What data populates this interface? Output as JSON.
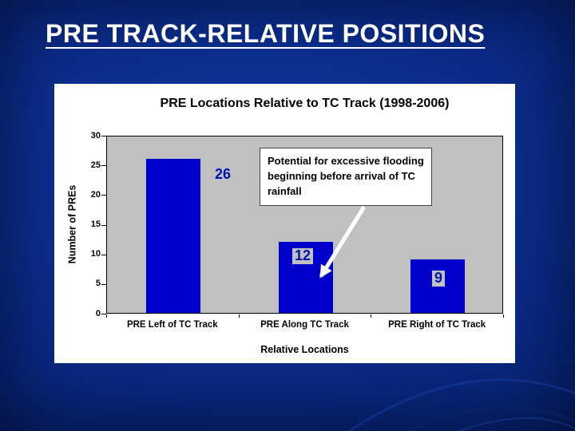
{
  "slide": {
    "title": "PRE TRACK-RELATIVE POSITIONS",
    "background_color": "#0a2d8c",
    "title_color": "#ffffff"
  },
  "chart_data": {
    "type": "bar",
    "title": "PRE Locations Relative to TC Track (1998-2006)",
    "categories": [
      "PRE Left of TC Track",
      "PRE Along TC Track",
      "PRE Right of TC Track"
    ],
    "values": [
      26,
      12,
      9
    ],
    "xlabel": "Relative Locations",
    "ylabel": "Number of PREs",
    "ylim": [
      0,
      30
    ],
    "yticks": [
      30,
      25,
      20,
      15,
      10,
      5,
      0
    ],
    "grid": false,
    "legend": "none",
    "bar_color": "#0000cc",
    "plot_background": "#c0c0c0",
    "value_label_color": "#0016b0",
    "annotation": {
      "text": "Potential for excessive flooding beginning before arrival of TC rainfall"
    }
  }
}
